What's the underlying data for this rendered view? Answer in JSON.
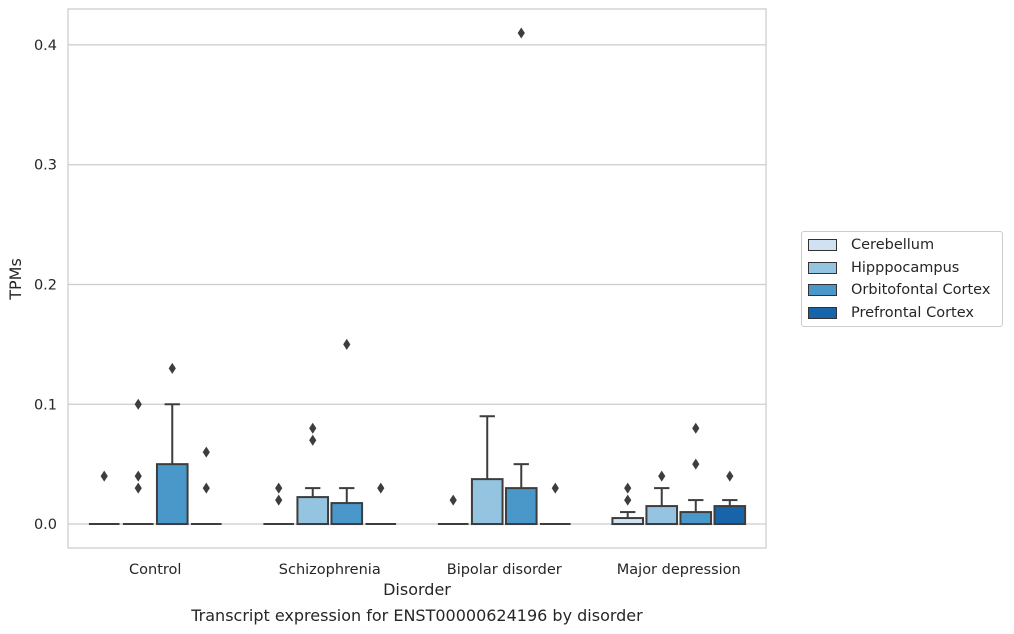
{
  "chart_data": {
    "type": "box",
    "title": "",
    "caption": "Transcript expression for ENST00000624196 by disorder",
    "xlabel": "Disorder",
    "ylabel": "TPMs",
    "categories": [
      "Control",
      "Schizophrenia",
      "Bipolar disorder",
      "Major depression"
    ],
    "yticks": [
      "0.0",
      "0.1",
      "0.2",
      "0.3",
      "0.4"
    ],
    "ylim": [
      -0.02,
      0.43
    ],
    "grid": "horizontal",
    "legend_position": "right",
    "series": [
      {
        "name": "Cerebellum",
        "color": "#d0e1f2",
        "boxes": [
          {
            "q1": 0,
            "median": 0,
            "q3": 0,
            "whisker_low": 0,
            "whisker_high": 0,
            "outliers": [
              0.04
            ]
          },
          {
            "q1": 0,
            "median": 0,
            "q3": 0,
            "whisker_low": 0,
            "whisker_high": 0,
            "outliers": [
              0.03,
              0.02
            ]
          },
          {
            "q1": 0,
            "median": 0,
            "q3": 0,
            "whisker_low": 0,
            "whisker_high": 0,
            "outliers": [
              0.02
            ]
          },
          {
            "q1": 0,
            "median": 0,
            "q3": 0.005,
            "whisker_low": 0,
            "whisker_high": 0.01,
            "outliers": [
              0.03,
              0.02
            ]
          }
        ]
      },
      {
        "name": "Hipppocampus",
        "color": "#94c4df",
        "boxes": [
          {
            "q1": 0,
            "median": 0,
            "q3": 0,
            "whisker_low": 0,
            "whisker_high": 0,
            "outliers": [
              0.1,
              0.04,
              0.03
            ]
          },
          {
            "q1": 0,
            "median": 0,
            "q3": 0.0225,
            "whisker_low": 0,
            "whisker_high": 0.03,
            "outliers": [
              0.08,
              0.07
            ]
          },
          {
            "q1": 0,
            "median": 0,
            "q3": 0.0375,
            "whisker_low": 0,
            "whisker_high": 0.09,
            "outliers": []
          },
          {
            "q1": 0,
            "median": 0,
            "q3": 0.015,
            "whisker_low": 0,
            "whisker_high": 0.03,
            "outliers": [
              0.04
            ]
          }
        ]
      },
      {
        "name": "Orbitofontal Cortex",
        "color": "#4a98c9",
        "boxes": [
          {
            "q1": 0,
            "median": 0,
            "q3": 0.05,
            "whisker_low": 0,
            "whisker_high": 0.1,
            "outliers": [
              0.13
            ]
          },
          {
            "q1": 0,
            "median": 0,
            "q3": 0.0175,
            "whisker_low": 0,
            "whisker_high": 0.03,
            "outliers": [
              0.15
            ]
          },
          {
            "q1": 0,
            "median": 0,
            "q3": 0.03,
            "whisker_low": 0,
            "whisker_high": 0.05,
            "outliers": [
              0.41
            ]
          },
          {
            "q1": 0,
            "median": 0,
            "q3": 0.01,
            "whisker_low": 0,
            "whisker_high": 0.02,
            "outliers": [
              0.08,
              0.05
            ]
          }
        ]
      },
      {
        "name": "Prefrontal Cortex",
        "color": "#1764ab",
        "boxes": [
          {
            "q1": 0,
            "median": 0,
            "q3": 0,
            "whisker_low": 0,
            "whisker_high": 0,
            "outliers": [
              0.06,
              0.03
            ]
          },
          {
            "q1": 0,
            "median": 0,
            "q3": 0,
            "whisker_low": 0,
            "whisker_high": 0,
            "outliers": [
              0.03
            ]
          },
          {
            "q1": 0,
            "median": 0,
            "q3": 0,
            "whisker_low": 0,
            "whisker_high": 0,
            "outliers": [
              0.03
            ]
          },
          {
            "q1": 0,
            "median": 0,
            "q3": 0.015,
            "whisker_low": 0,
            "whisker_high": 0.02,
            "outliers": [
              0.04
            ]
          }
        ]
      }
    ]
  }
}
